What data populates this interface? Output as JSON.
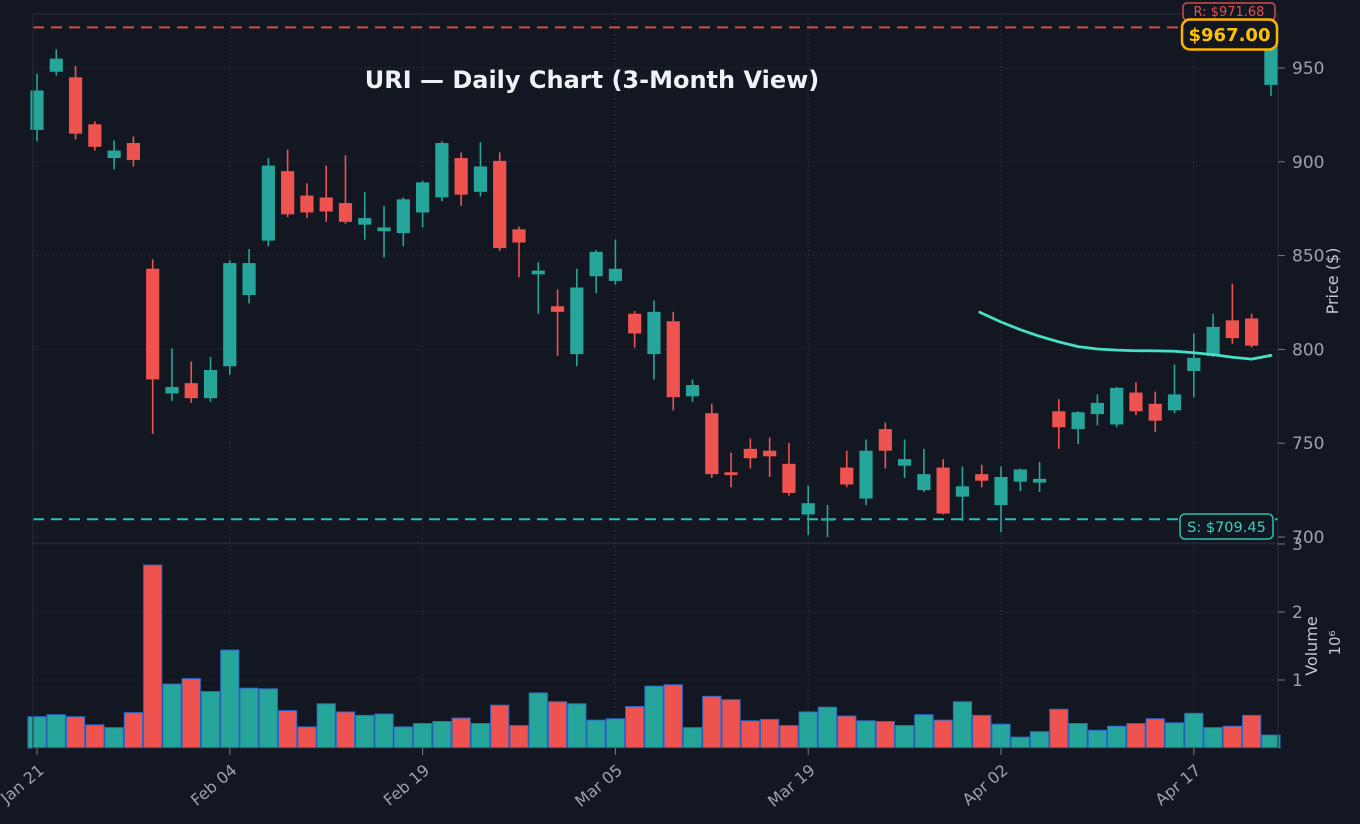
{
  "colors": {
    "background": "#131722",
    "up": "#26a69a",
    "down": "#ef5350",
    "ma_line": "#45e0c5",
    "resistance": "#cf4e49",
    "resistance_text": "#e0524e",
    "support": "#2fbfae",
    "support_text": "#3ecfbb",
    "badge_border": "#ffb300",
    "badge_text": "#ffc107",
    "volume_bar_edge": "#2d6bcc",
    "grid": "#343a4a",
    "tick_label": "#9aa2ad",
    "title_text": "#f0f2f5"
  },
  "chart_data": {
    "type": "candlestick",
    "symbol": "URI",
    "title": "URI — Daily Chart (3-Month View)",
    "legend_position": "none",
    "grid": "dotted",
    "price_axis": {
      "label": "Price ($)",
      "side": "right",
      "ticks": [
        950,
        900,
        850,
        800,
        750,
        700
      ],
      "ylim": [
        697,
        978
      ]
    },
    "volume_axis": {
      "label": "Volume",
      "unit": "10⁶",
      "side": "right",
      "ticks": [
        1,
        2,
        3
      ],
      "ylim": [
        0,
        3.01
      ]
    },
    "x_ticks": [
      {
        "index": 0,
        "label": "Jan 21"
      },
      {
        "index": 10,
        "label": "Feb 04"
      },
      {
        "index": 20,
        "label": "Feb 19"
      },
      {
        "index": 30,
        "label": "Mar 05"
      },
      {
        "index": 40,
        "label": "Mar 19"
      },
      {
        "index": 50,
        "label": "Apr 02"
      },
      {
        "index": 60,
        "label": "Apr 17"
      }
    ],
    "resistance": {
      "label": "R: $971.68",
      "value": 971.68
    },
    "support": {
      "label": "S: $709.45",
      "value": 709.45
    },
    "last_price": {
      "label": "$967.00",
      "value": 967.0
    },
    "ma_line": [
      [
        48.9,
        819.8
      ],
      [
        50,
        814.6
      ],
      [
        51,
        810.5
      ],
      [
        52,
        807.0
      ],
      [
        53,
        804.0
      ],
      [
        54,
        801.5
      ],
      [
        55,
        800.2
      ],
      [
        56,
        799.6
      ],
      [
        57,
        799.3
      ],
      [
        58,
        799.2
      ],
      [
        59,
        799.0
      ],
      [
        60,
        798.2
      ],
      [
        61,
        797.2
      ],
      [
        62,
        795.8
      ],
      [
        63,
        794.8
      ],
      [
        64,
        796.8
      ]
    ],
    "candles_format": [
      "open",
      "high",
      "low",
      "close",
      "volume_millions"
    ],
    "candles": [
      [
        917,
        947,
        911,
        938,
        0.46
      ],
      [
        948,
        960,
        946,
        955,
        0.49
      ],
      [
        945,
        951,
        912,
        915,
        0.46
      ],
      [
        920,
        921.5,
        906,
        908,
        0.34
      ],
      [
        902,
        911.5,
        896,
        906,
        0.3
      ],
      [
        910,
        913.5,
        897.5,
        901,
        0.52
      ],
      [
        843,
        848,
        755,
        784,
        2.69
      ],
      [
        776.5,
        800.5,
        772.5,
        780,
        0.94
      ],
      [
        782,
        793.5,
        771.5,
        774,
        1.02
      ],
      [
        774,
        796,
        772,
        789,
        0.83
      ],
      [
        791,
        847.5,
        786.5,
        846,
        1.44
      ],
      [
        829,
        853.5,
        824.5,
        846,
        0.88
      ],
      [
        858,
        902,
        855,
        898,
        0.87
      ],
      [
        895,
        906.5,
        870.5,
        872,
        0.55
      ],
      [
        882,
        888.5,
        870,
        873,
        0.31
      ],
      [
        881,
        898,
        868,
        873.5,
        0.65
      ],
      [
        878,
        903.5,
        867,
        868,
        0.53
      ],
      [
        866.5,
        884,
        858.5,
        870,
        0.48
      ],
      [
        863,
        876.5,
        849,
        865,
        0.5
      ],
      [
        862,
        881,
        855,
        880,
        0.31
      ],
      [
        873,
        890,
        865,
        889,
        0.36
      ],
      [
        881,
        911,
        879,
        910,
        0.39
      ],
      [
        902,
        905,
        876.5,
        882.5,
        0.44
      ],
      [
        884,
        910.5,
        881.5,
        897.5,
        0.36
      ],
      [
        900.5,
        905,
        852.5,
        854,
        0.63
      ],
      [
        864,
        865.5,
        838.5,
        857,
        0.33
      ],
      [
        840,
        846.5,
        819,
        842,
        0.81
      ],
      [
        823,
        832,
        796.5,
        820,
        0.68
      ],
      [
        797.5,
        843,
        791,
        833,
        0.65
      ],
      [
        839,
        853,
        830,
        852,
        0.41
      ],
      [
        836.5,
        858.5,
        834.5,
        843,
        0.43
      ],
      [
        819,
        820.5,
        801,
        808.5,
        0.61
      ],
      [
        797.5,
        826,
        784,
        820,
        0.91
      ],
      [
        815,
        820,
        767.5,
        774.5,
        0.93
      ],
      [
        775,
        784,
        772,
        781,
        0.3
      ],
      [
        766,
        771,
        731.5,
        733.5,
        0.76
      ],
      [
        734.5,
        745,
        726.5,
        733,
        0.71
      ],
      [
        747,
        752.5,
        736.5,
        742,
        0.4
      ],
      [
        746,
        753,
        732,
        743,
        0.42
      ],
      [
        739,
        750,
        722,
        723.5,
        0.33
      ],
      [
        712,
        727.5,
        701,
        718,
        0.53
      ],
      [
        709.5,
        717,
        700,
        710,
        0.6
      ],
      [
        737,
        746,
        726.5,
        728,
        0.47
      ],
      [
        720.5,
        752,
        717,
        746,
        0.4
      ],
      [
        757.5,
        761,
        736.5,
        746,
        0.39
      ],
      [
        738,
        752,
        731.5,
        741.5,
        0.33
      ],
      [
        725,
        747,
        724,
        733.5,
        0.49
      ],
      [
        737,
        741.5,
        712,
        712.5,
        0.41
      ],
      [
        721.5,
        737.5,
        708.5,
        727,
        0.68
      ],
      [
        733.5,
        738.5,
        726.5,
        730,
        0.48
      ],
      [
        717,
        737.5,
        702.5,
        732,
        0.35
      ],
      [
        729.5,
        736.5,
        724.5,
        736,
        0.16
      ],
      [
        729,
        740,
        724,
        731,
        0.24
      ],
      [
        767,
        773.5,
        747,
        758.5,
        0.57
      ],
      [
        757.5,
        767,
        749.5,
        766.5,
        0.36
      ],
      [
        765.5,
        776,
        759.5,
        771.5,
        0.26
      ],
      [
        760,
        780,
        758.5,
        779.5,
        0.32
      ],
      [
        777,
        782.5,
        765,
        767,
        0.36
      ],
      [
        771,
        777.5,
        756,
        762,
        0.43
      ],
      [
        767.5,
        792,
        766,
        776,
        0.37
      ],
      [
        788.5,
        808.5,
        774.5,
        795.5,
        0.51
      ],
      [
        796.5,
        819,
        796,
        812,
        0.3
      ],
      [
        815.5,
        835,
        803,
        806,
        0.32
      ],
      [
        816.5,
        819,
        801,
        802,
        0.48
      ],
      [
        941,
        968,
        935,
        967,
        0.19
      ]
    ],
    "volume_color_overrides": {
      "15": "up"
    }
  }
}
